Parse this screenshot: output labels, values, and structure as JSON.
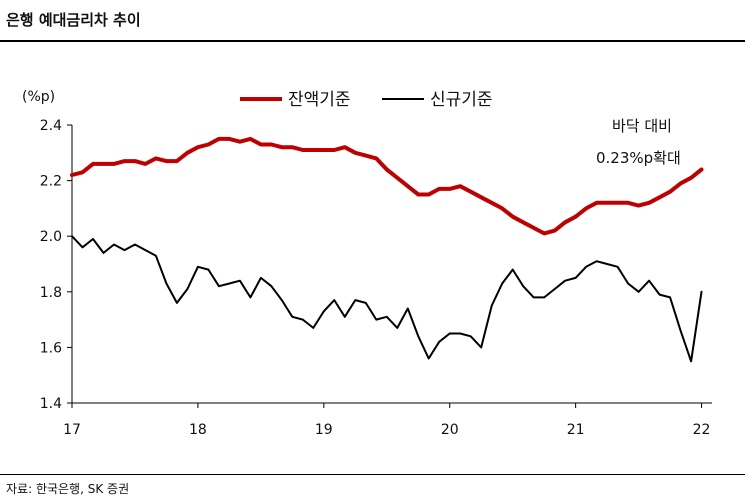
{
  "title": "은행 예대금리차 추이",
  "source": "자료: 한국은행, SK 증권",
  "colors": {
    "balance": "#c00000",
    "new": "#000000"
  },
  "chart_data": {
    "type": "line",
    "ylabel": "(%p)",
    "ylim": [
      1.4,
      2.4
    ],
    "yticks": [
      "1.4",
      "1.6",
      "1.8",
      "2.0",
      "2.2",
      "2.4"
    ],
    "xlim": [
      2017,
      2022.083
    ],
    "xticks": [
      "17",
      "18",
      "19",
      "20",
      "21",
      "22"
    ],
    "grid": false,
    "legend_position": "top",
    "annotation": [
      "바닥 대비",
      "0.23%p확대"
    ],
    "series": [
      {
        "name": "잔액기준",
        "color": "#c00000",
        "values": [
          2.22,
          2.23,
          2.26,
          2.26,
          2.26,
          2.27,
          2.27,
          2.26,
          2.28,
          2.27,
          2.27,
          2.3,
          2.32,
          2.33,
          2.35,
          2.35,
          2.34,
          2.35,
          2.33,
          2.33,
          2.32,
          2.32,
          2.31,
          2.31,
          2.31,
          2.31,
          2.32,
          2.3,
          2.29,
          2.28,
          2.24,
          2.21,
          2.18,
          2.15,
          2.15,
          2.17,
          2.17,
          2.18,
          2.16,
          2.14,
          2.12,
          2.1,
          2.07,
          2.05,
          2.03,
          2.01,
          2.02,
          2.05,
          2.07,
          2.1,
          2.12,
          2.12,
          2.12,
          2.12,
          2.11,
          2.12,
          2.14,
          2.16,
          2.19,
          2.21,
          2.24
        ]
      },
      {
        "name": "신규기준",
        "color": "#000000",
        "values": [
          2.0,
          1.96,
          1.99,
          1.94,
          1.97,
          1.95,
          1.97,
          1.95,
          1.93,
          1.83,
          1.76,
          1.81,
          1.89,
          1.88,
          1.82,
          1.83,
          1.84,
          1.78,
          1.85,
          1.82,
          1.77,
          1.71,
          1.7,
          1.67,
          1.73,
          1.77,
          1.71,
          1.77,
          1.76,
          1.7,
          1.71,
          1.67,
          1.74,
          1.64,
          1.56,
          1.62,
          1.65,
          1.65,
          1.64,
          1.6,
          1.75,
          1.83,
          1.88,
          1.82,
          1.78,
          1.78,
          1.81,
          1.84,
          1.85,
          1.89,
          1.91,
          1.9,
          1.89,
          1.83,
          1.8,
          1.84,
          1.79,
          1.78,
          1.66,
          1.55,
          1.8
        ]
      }
    ]
  }
}
